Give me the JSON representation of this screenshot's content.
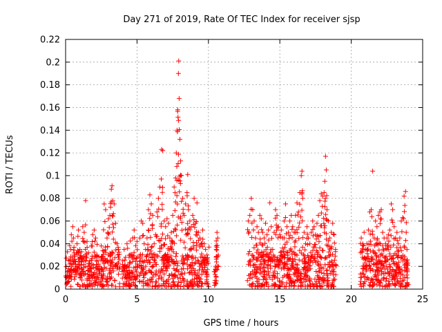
{
  "chart_data": {
    "type": "scatter",
    "title": "Day 271 of 2019, Rate Of TEC Index for receiver sjsp",
    "xlabel": "GPS time / hours",
    "ylabel": "ROTI / TECUs",
    "xlim": [
      0,
      25
    ],
    "ylim": [
      0,
      0.22
    ],
    "xticks": [
      0,
      5,
      10,
      15,
      20,
      25
    ],
    "xtick_labels": [
      "0",
      "5",
      "10",
      "15",
      "20",
      "25"
    ],
    "yticks": [
      0,
      0.02,
      0.04,
      0.06,
      0.08,
      0.1,
      0.12,
      0.14,
      0.16,
      0.18,
      0.2,
      0.22
    ],
    "ytick_labels": [
      "0",
      "0.02",
      "0.04",
      "0.06",
      "0.08",
      "0.1",
      "0.12",
      "0.14",
      "0.16",
      "0.18",
      "0.2",
      "0.22"
    ],
    "grid": true,
    "marker": "+",
    "color": "#ff0000",
    "data_gaps_hours": [
      [
        3.8,
        3.95
      ],
      [
        10.05,
        10.4
      ],
      [
        10.7,
        12.7
      ],
      [
        18.95,
        20.6
      ]
    ],
    "series": [
      {
        "name": "ROTI",
        "points": [
          [
            0.1,
            0.012
          ],
          [
            0.2,
            0.018
          ],
          [
            0.3,
            0.025
          ],
          [
            0.35,
            0.035
          ],
          [
            0.4,
            0.048
          ],
          [
            0.5,
            0.055
          ],
          [
            0.55,
            0.045
          ],
          [
            0.6,
            0.03
          ],
          [
            0.7,
            0.022
          ],
          [
            0.8,
            0.04
          ],
          [
            0.9,
            0.052
          ],
          [
            1.0,
            0.035
          ],
          [
            1.1,
            0.028
          ],
          [
            1.2,
            0.055
          ],
          [
            1.3,
            0.05
          ],
          [
            1.4,
            0.078
          ],
          [
            1.5,
            0.042
          ],
          [
            1.6,
            0.032
          ],
          [
            1.7,
            0.025
          ],
          [
            1.8,
            0.038
          ],
          [
            1.9,
            0.048
          ],
          [
            2.0,
            0.052
          ],
          [
            2.1,
            0.045
          ],
          [
            2.2,
            0.03
          ],
          [
            2.3,
            0.022
          ],
          [
            2.4,
            0.02
          ],
          [
            2.5,
            0.038
          ],
          [
            2.6,
            0.034
          ],
          [
            2.7,
            0.075
          ],
          [
            2.8,
            0.07
          ],
          [
            2.9,
            0.045
          ],
          [
            3.0,
            0.062
          ],
          [
            3.1,
            0.065
          ],
          [
            3.2,
            0.088
          ],
          [
            3.25,
            0.091
          ],
          [
            3.3,
            0.078
          ],
          [
            3.4,
            0.075
          ],
          [
            3.5,
            0.058
          ],
          [
            3.6,
            0.04
          ],
          [
            3.7,
            0.035
          ],
          [
            4.0,
            0.025
          ],
          [
            4.1,
            0.035
          ],
          [
            4.2,
            0.028
          ],
          [
            4.3,
            0.04
          ],
          [
            4.5,
            0.03
          ],
          [
            4.7,
            0.045
          ],
          [
            4.8,
            0.052
          ],
          [
            5.0,
            0.042
          ],
          [
            5.2,
            0.045
          ],
          [
            5.3,
            0.06
          ],
          [
            5.4,
            0.058
          ],
          [
            5.5,
            0.04
          ],
          [
            5.6,
            0.035
          ],
          [
            5.7,
            0.045
          ],
          [
            5.8,
            0.07
          ],
          [
            5.9,
            0.083
          ],
          [
            6.0,
            0.075
          ],
          [
            6.1,
            0.065
          ],
          [
            6.2,
            0.04
          ],
          [
            6.3,
            0.048
          ],
          [
            6.4,
            0.068
          ],
          [
            6.5,
            0.08
          ],
          [
            6.6,
            0.09
          ],
          [
            6.7,
            0.097
          ],
          [
            6.72,
            0.123
          ],
          [
            6.8,
            0.122
          ],
          [
            6.9,
            0.06
          ],
          [
            7.0,
            0.055
          ],
          [
            7.1,
            0.062
          ],
          [
            7.2,
            0.058
          ],
          [
            7.3,
            0.045
          ],
          [
            7.4,
            0.05
          ],
          [
            7.5,
            0.065
          ],
          [
            7.6,
            0.09
          ],
          [
            7.7,
            0.098
          ],
          [
            7.75,
            0.12
          ],
          [
            7.8,
            0.14
          ],
          [
            7.85,
            0.158
          ],
          [
            7.9,
            0.19
          ],
          [
            7.92,
            0.201
          ],
          [
            7.95,
            0.168
          ],
          [
            8.0,
            0.132
          ],
          [
            8.05,
            0.113
          ],
          [
            8.1,
            0.1
          ],
          [
            8.2,
            0.08
          ],
          [
            8.3,
            0.065
          ],
          [
            8.4,
            0.075
          ],
          [
            8.5,
            0.085
          ],
          [
            8.55,
            0.101
          ],
          [
            8.6,
            0.07
          ],
          [
            8.7,
            0.06
          ],
          [
            8.8,
            0.055
          ],
          [
            8.9,
            0.065
          ],
          [
            9.0,
            0.08
          ],
          [
            9.1,
            0.058
          ],
          [
            9.2,
            0.076
          ],
          [
            9.3,
            0.05
          ],
          [
            9.4,
            0.045
          ],
          [
            9.5,
            0.04
          ],
          [
            9.6,
            0.052
          ],
          [
            9.7,
            0.04
          ],
          [
            9.8,
            0.035
          ],
          [
            9.9,
            0.03
          ],
          [
            10.5,
            0.02
          ],
          [
            10.6,
            0.05
          ],
          [
            10.65,
            0.045
          ],
          [
            10.55,
            0.035
          ],
          [
            12.8,
            0.06
          ],
          [
            12.9,
            0.065
          ],
          [
            13.0,
            0.08
          ],
          [
            13.1,
            0.07
          ],
          [
            13.2,
            0.06
          ],
          [
            13.3,
            0.045
          ],
          [
            13.4,
            0.055
          ],
          [
            13.5,
            0.05
          ],
          [
            13.6,
            0.065
          ],
          [
            13.7,
            0.062
          ],
          [
            13.8,
            0.05
          ],
          [
            13.9,
            0.045
          ],
          [
            14.0,
            0.058
          ],
          [
            14.1,
            0.048
          ],
          [
            14.2,
            0.052
          ],
          [
            14.3,
            0.076
          ],
          [
            14.4,
            0.055
          ],
          [
            14.5,
            0.035
          ],
          [
            14.6,
            0.05
          ],
          [
            14.7,
            0.07
          ],
          [
            14.8,
            0.065
          ],
          [
            14.9,
            0.055
          ],
          [
            15.0,
            0.048
          ],
          [
            15.1,
            0.052
          ],
          [
            15.2,
            0.045
          ],
          [
            15.3,
            0.06
          ],
          [
            15.4,
            0.075
          ],
          [
            15.5,
            0.055
          ],
          [
            15.6,
            0.05
          ],
          [
            15.7,
            0.06
          ],
          [
            15.8,
            0.065
          ],
          [
            15.9,
            0.055
          ],
          [
            16.0,
            0.05
          ],
          [
            16.1,
            0.065
          ],
          [
            16.2,
            0.076
          ],
          [
            16.3,
            0.068
          ],
          [
            16.4,
            0.085
          ],
          [
            16.5,
            0.1
          ],
          [
            16.55,
            0.104
          ],
          [
            16.6,
            0.08
          ],
          [
            16.7,
            0.05
          ],
          [
            16.8,
            0.04
          ],
          [
            16.9,
            0.055
          ],
          [
            17.0,
            0.045
          ],
          [
            17.1,
            0.04
          ],
          [
            17.2,
            0.05
          ],
          [
            17.3,
            0.06
          ],
          [
            17.4,
            0.055
          ],
          [
            17.5,
            0.048
          ],
          [
            17.6,
            0.058
          ],
          [
            17.7,
            0.065
          ],
          [
            17.8,
            0.078
          ],
          [
            17.9,
            0.084
          ],
          [
            18.0,
            0.082
          ],
          [
            18.1,
            0.085
          ],
          [
            18.15,
            0.095
          ],
          [
            18.2,
            0.117
          ],
          [
            18.25,
            0.105
          ],
          [
            18.3,
            0.07
          ],
          [
            18.4,
            0.06
          ],
          [
            18.5,
            0.045
          ],
          [
            18.6,
            0.05
          ],
          [
            18.7,
            0.058
          ],
          [
            18.8,
            0.048
          ],
          [
            18.9,
            0.035
          ],
          [
            20.7,
            0.045
          ],
          [
            20.8,
            0.04
          ],
          [
            20.9,
            0.05
          ],
          [
            21.0,
            0.035
          ],
          [
            21.1,
            0.04
          ],
          [
            21.2,
            0.052
          ],
          [
            21.3,
            0.068
          ],
          [
            21.4,
            0.07
          ],
          [
            21.5,
            0.104
          ],
          [
            21.6,
            0.045
          ],
          [
            21.7,
            0.06
          ],
          [
            21.8,
            0.055
          ],
          [
            21.9,
            0.065
          ],
          [
            22.0,
            0.068
          ],
          [
            22.1,
            0.07
          ],
          [
            22.2,
            0.05
          ],
          [
            22.3,
            0.045
          ],
          [
            22.4,
            0.04
          ],
          [
            22.5,
            0.045
          ],
          [
            22.6,
            0.048
          ],
          [
            22.7,
            0.052
          ],
          [
            22.8,
            0.075
          ],
          [
            22.9,
            0.07
          ],
          [
            23.0,
            0.055
          ],
          [
            23.1,
            0.045
          ],
          [
            23.2,
            0.05
          ],
          [
            23.3,
            0.04
          ],
          [
            23.4,
            0.045
          ],
          [
            23.5,
            0.06
          ],
          [
            23.6,
            0.063
          ],
          [
            23.7,
            0.082
          ],
          [
            23.8,
            0.086
          ],
          [
            23.85,
            0.05
          ],
          [
            23.9,
            0.035
          ]
        ],
        "baseline_band": {
          "min": 0.002,
          "max": 0.03,
          "density_per_hour": 60
        }
      }
    ]
  }
}
